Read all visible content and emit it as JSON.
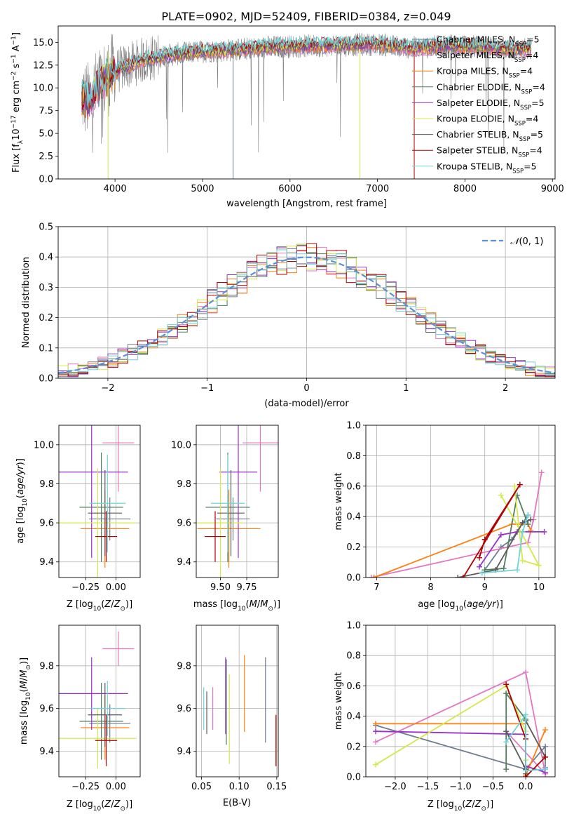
{
  "figure_title": "PLATE=0902, MJD=52409, FIBERID=0384, z=0.049",
  "colors": {
    "Chabrier MILES": "#6f7d91",
    "Salpeter MILES": "#e377c2",
    "Kroupa MILES": "#ff7f0e",
    "Chabrier ELODIE": "#4f7f5f",
    "Salpeter ELODIE": "#9932cc",
    "Kroupa ELODIE": "#d4e84a",
    "Chabrier STELIB": "#5a5a5a",
    "Salpeter STELIB": "#b30000",
    "Kroupa STELIB": "#6fd3da",
    "data": "#808080",
    "normal": "#5b8fd6"
  },
  "chart_data": [
    {
      "id": "spectrum",
      "type": "line",
      "xlabel": "wavelength [Angstrom, rest frame]",
      "ylabel": "Flux [f",
      "xlim": [
        3350,
        9030
      ],
      "ylim": [
        0,
        16.8
      ],
      "xticks": [
        4000,
        5000,
        6000,
        7000,
        8000,
        9000
      ],
      "yticks": [
        0.0,
        2.5,
        5.0,
        7.5,
        10.0,
        12.5,
        15.0
      ],
      "legend": [
        "Chabrier MILES, N_SSP=5",
        "Salpeter MILES, N_SSP=4",
        "Kroupa MILES, N_SSP=4",
        "Chabrier ELODIE, N_SSP=4",
        "Salpeter ELODIE, N_SSP=5",
        "Kroupa ELODIE, N_SSP=4",
        "Chabrier STELIB, N_SSP=5",
        "Salpeter STELIB, N_SSP=4",
        "Kroupa STELIB, N_SSP=5"
      ],
      "legend_labels": [
        {
          "name": "Chabrier MILES, N",
          "sub": "SSP",
          "tail": "=5",
          "color": "Chabrier MILES"
        },
        {
          "name": "Salpeter MILES, N",
          "sub": "SSP",
          "tail": "=4",
          "color": "Salpeter MILES"
        },
        {
          "name": "Kroupa MILES, N",
          "sub": "SSP",
          "tail": "=4",
          "color": "Kroupa MILES"
        },
        {
          "name": "Chabrier ELODIE, N",
          "sub": "SSP",
          "tail": "=4",
          "color": "Chabrier ELODIE"
        },
        {
          "name": "Salpeter ELODIE, N",
          "sub": "SSP",
          "tail": "=5",
          "color": "Salpeter ELODIE"
        },
        {
          "name": "Kroupa ELODIE, N",
          "sub": "SSP",
          "tail": "=4",
          "color": "Kroupa ELODIE"
        },
        {
          "name": "Chabrier STELIB, N",
          "sub": "SSP",
          "tail": "=5",
          "color": "Chabrier STELIB"
        },
        {
          "name": "Salpeter STELIB, N",
          "sub": "SSP",
          "tail": "=4",
          "color": "Salpeter STELIB"
        },
        {
          "name": "Kroupa STELIB, N",
          "sub": "SSP",
          "tail": "=5",
          "color": "Kroupa STELIB"
        }
      ],
      "continuum": [
        [
          3620,
          9.0
        ],
        [
          3700,
          8.5
        ],
        [
          3800,
          10.0
        ],
        [
          3950,
          11.5
        ],
        [
          4100,
          12.2
        ],
        [
          4300,
          13.0
        ],
        [
          4600,
          13.6
        ],
        [
          5000,
          14.0
        ],
        [
          5400,
          14.2
        ],
        [
          5800,
          14.5
        ],
        [
          6200,
          14.6
        ],
        [
          6600,
          14.7
        ],
        [
          7000,
          14.8
        ],
        [
          7400,
          14.4
        ],
        [
          7800,
          14.6
        ],
        [
          8200,
          14.5
        ],
        [
          8600,
          14.2
        ],
        [
          8750,
          14.2
        ]
      ]
    },
    {
      "id": "residuals",
      "type": "histogram",
      "xlabel": "(data-model)/error",
      "ylabel": "Normed distribution",
      "xlim": [
        -2.5,
        2.5
      ],
      "ylim": [
        0,
        0.5
      ],
      "xticks": [
        -2,
        -1,
        0,
        1,
        2
      ],
      "yticks": [
        0.0,
        0.1,
        0.2,
        0.3,
        0.4,
        0.5
      ],
      "bin_width": 0.1,
      "legend": "N(0,1)"
    },
    {
      "id": "age-vs-z",
      "type": "errorbar",
      "xlabel": "Z [log10(Z/Z_sun)]",
      "ylabel": "age [log10(age/yr)]",
      "xlim": [
        -0.47,
        0.2
      ],
      "ylim": [
        9.32,
        10.1
      ],
      "xticks": [
        -0.25,
        0.0
      ],
      "yticks": [
        9.4,
        9.6,
        9.8,
        10.0
      ],
      "points": [
        {
          "model": "Chabrier MILES",
          "x": -0.05,
          "xerr": 0.17,
          "y": 9.62,
          "yerr": 0.11
        },
        {
          "model": "Salpeter MILES",
          "x": 0.02,
          "xerr": 0.13,
          "y": 10.01,
          "yerr": 0.25
        },
        {
          "model": "Kroupa MILES",
          "x": -0.09,
          "xerr": 0.2,
          "y": 9.57,
          "yerr": 0.2
        },
        {
          "model": "Chabrier ELODIE",
          "x": -0.12,
          "xerr": 0.18,
          "y": 9.68,
          "yerr": 0.28
        },
        {
          "model": "Salpeter ELODIE",
          "x": -0.2,
          "xerr": 0.3,
          "y": 9.86,
          "yerr": 0.44
        },
        {
          "model": "Kroupa ELODIE",
          "x": -0.15,
          "xerr": 0.32,
          "y": 9.6,
          "yerr": 0.28
        },
        {
          "model": "Chabrier STELIB",
          "x": -0.09,
          "xerr": 0.14,
          "y": 9.65,
          "yerr": 0.22
        },
        {
          "model": "Salpeter STELIB",
          "x": -0.08,
          "xerr": 0.09,
          "y": 9.53,
          "yerr": 0.13
        },
        {
          "model": "Kroupa STELIB",
          "x": -0.07,
          "xerr": 0.15,
          "y": 9.7,
          "yerr": 0.25
        }
      ]
    },
    {
      "id": "age-vs-mass",
      "type": "errorbar",
      "xlabel": "mass [log10(M/M_sun)]",
      "ylabel": "",
      "xlim": [
        9.27,
        10.05
      ],
      "ylim": [
        9.32,
        10.1
      ],
      "xticks": [
        9.5,
        9.75
      ],
      "yticks": [
        9.4,
        9.6,
        9.8,
        10.0
      ],
      "points": [
        {
          "model": "Chabrier MILES",
          "x": 9.62,
          "xerr": 0.16,
          "y": 9.62,
          "yerr": 0.11
        },
        {
          "model": "Salpeter MILES",
          "x": 9.88,
          "xerr": 0.17,
          "y": 10.01,
          "yerr": 0.25
        },
        {
          "model": "Kroupa MILES",
          "x": 9.58,
          "xerr": 0.3,
          "y": 9.57,
          "yerr": 0.2
        },
        {
          "model": "Chabrier ELODIE",
          "x": 9.57,
          "xerr": 0.21,
          "y": 9.68,
          "yerr": 0.28
        },
        {
          "model": "Salpeter ELODIE",
          "x": 9.67,
          "xerr": 0.18,
          "y": 9.86,
          "yerr": 0.44
        },
        {
          "model": "Kroupa ELODIE",
          "x": 9.5,
          "xerr": 0.22,
          "y": 9.6,
          "yerr": 0.28
        },
        {
          "model": "Chabrier STELIB",
          "x": 9.6,
          "xerr": 0.13,
          "y": 9.65,
          "yerr": 0.22
        },
        {
          "model": "Salpeter STELIB",
          "x": 9.45,
          "xerr": 0.1,
          "y": 9.53,
          "yerr": 0.13
        },
        {
          "model": "Kroupa STELIB",
          "x": 9.57,
          "xerr": 0.16,
          "y": 9.7,
          "yerr": 0.25
        }
      ]
    },
    {
      "id": "weight-vs-age",
      "type": "line",
      "xlabel": "age [log10(age/yr)]",
      "ylabel": "mass weight",
      "xlim": [
        6.8,
        10.3
      ],
      "ylim": [
        0,
        1
      ],
      "xticks": [
        7,
        8,
        9,
        10
      ],
      "yticks": [
        0.0,
        0.2,
        0.4,
        0.6,
        0.8,
        1.0
      ],
      "series": [
        {
          "model": "Chabrier MILES",
          "x": [
            9.0,
            9.3,
            9.5,
            9.8
          ],
          "y": [
            0.05,
            0.2,
            0.25,
            0.41
          ]
        },
        {
          "model": "Salpeter MILES",
          "x": [
            6.9,
            9.8,
            9.9,
            10.05
          ],
          "y": [
            0.0,
            0.23,
            0.38,
            0.69
          ]
        },
        {
          "model": "Kroupa MILES",
          "x": [
            6.95,
            9.5,
            9.8,
            9.85
          ],
          "y": [
            0.0,
            0.35,
            0.35,
            0.31
          ]
        },
        {
          "model": "Chabrier ELODIE",
          "x": [
            9.0,
            9.35,
            9.6,
            9.8
          ],
          "y": [
            0.05,
            0.06,
            0.54,
            0.35
          ]
        },
        {
          "model": "Salpeter ELODIE",
          "x": [
            8.9,
            9.3,
            9.6,
            10.1
          ],
          "y": [
            0.07,
            0.28,
            0.3,
            0.3
          ]
        },
        {
          "model": "Kroupa ELODIE",
          "x": [
            9.55,
            9.7,
            10.0,
            9.3
          ],
          "y": [
            0.6,
            0.11,
            0.08,
            0.54
          ]
        },
        {
          "model": "Chabrier STELIB",
          "x": [
            8.5,
            9.2,
            9.7,
            9.85
          ],
          "y": [
            0.0,
            0.05,
            0.36,
            0.38
          ]
        },
        {
          "model": "Salpeter STELIB",
          "x": [
            8.9,
            9.0,
            9.65,
            8.6
          ],
          "y": [
            0.13,
            0.25,
            0.61,
            0.0
          ]
        },
        {
          "model": "Kroupa STELIB",
          "x": [
            8.95,
            9.6,
            9.7,
            9.8
          ],
          "y": [
            0.03,
            0.05,
            0.3,
            0.41
          ]
        }
      ]
    },
    {
      "id": "mass-vs-z",
      "type": "errorbar",
      "xlabel": "Z [log10(Z/Z_sun)]",
      "ylabel": "mass [log10(M/M_sun)]",
      "xlim": [
        -0.47,
        0.2
      ],
      "ylim": [
        9.28,
        9.99
      ],
      "xticks": [
        -0.25,
        0.0
      ],
      "yticks": [
        9.4,
        9.6,
        9.8
      ],
      "points": [
        {
          "model": "Chabrier MILES",
          "x": -0.05,
          "xerr": 0.17,
          "y": 9.53,
          "yerr": 0.09
        },
        {
          "model": "Salpeter MILES",
          "x": 0.02,
          "xerr": 0.13,
          "y": 9.88,
          "yerr": 0.08
        },
        {
          "model": "Kroupa MILES",
          "x": -0.09,
          "xerr": 0.2,
          "y": 9.51,
          "yerr": 0.15
        },
        {
          "model": "Chabrier ELODIE",
          "x": -0.12,
          "xerr": 0.18,
          "y": 9.54,
          "yerr": 0.18
        },
        {
          "model": "Salpeter ELODIE",
          "x": -0.2,
          "xerr": 0.3,
          "y": 9.67,
          "yerr": 0.17
        },
        {
          "model": "Kroupa ELODIE",
          "x": -0.15,
          "xerr": 0.32,
          "y": 9.46,
          "yerr": 0.14
        },
        {
          "model": "Chabrier STELIB",
          "x": -0.09,
          "xerr": 0.14,
          "y": 9.57,
          "yerr": 0.15
        },
        {
          "model": "Salpeter STELIB",
          "x": -0.08,
          "xerr": 0.09,
          "y": 9.45,
          "yerr": 0.12
        },
        {
          "model": "Kroupa STELIB",
          "x": -0.07,
          "xerr": 0.15,
          "y": 9.6,
          "yerr": 0.13
        }
      ]
    },
    {
      "id": "mass-vs-ebv",
      "type": "errorbar",
      "xlabel": "E(B-V)",
      "ylabel": "",
      "xlim": [
        0.043,
        0.152
      ],
      "ylim": [
        9.28,
        9.99
      ],
      "xticks": [
        0.05,
        0.1,
        0.15
      ],
      "yticks": [
        9.4,
        9.6,
        9.8
      ],
      "points": [
        {
          "model": "Chabrier MILES",
          "x": 0.135,
          "y": 9.64,
          "yerr": 0.2
        },
        {
          "model": "Salpeter MILES",
          "x": 0.065,
          "y": 9.6,
          "yerr": 0.1
        },
        {
          "model": "Kroupa MILES",
          "x": 0.107,
          "y": 9.67,
          "yerr": 0.18
        },
        {
          "model": "Chabrier ELODIE",
          "x": 0.083,
          "y": 9.63,
          "yerr": 0.2
        },
        {
          "model": "Salpeter ELODIE",
          "x": 0.082,
          "y": 9.66,
          "yerr": 0.18
        },
        {
          "model": "Kroupa ELODIE",
          "x": 0.087,
          "y": 9.55,
          "yerr": 0.21
        },
        {
          "model": "Chabrier STELIB",
          "x": 0.057,
          "y": 9.58,
          "yerr": 0.1
        },
        {
          "model": "Salpeter STELIB",
          "x": 0.149,
          "y": 9.45,
          "yerr": 0.12
        },
        {
          "model": "Kroupa STELIB",
          "x": 0.053,
          "y": 9.6,
          "yerr": 0.1
        }
      ]
    },
    {
      "id": "weight-vs-z",
      "type": "line",
      "xlabel": "Z [log10(Z/Z_sun)]",
      "ylabel": "mass weight",
      "xlim": [
        -2.45,
        0.45
      ],
      "ylim": [
        0,
        1
      ],
      "xticks": [
        -2.0,
        -1.5,
        -1.0,
        -0.5,
        0.0
      ],
      "yticks": [
        0.0,
        0.2,
        0.4,
        0.6,
        0.8,
        1.0
      ],
      "series": [
        {
          "model": "Chabrier MILES",
          "x": [
            -2.3,
            0.0,
            0.3,
            0.3
          ],
          "y": [
            0.34,
            0.05,
            0.2,
            0.06
          ]
        },
        {
          "model": "Salpeter MILES",
          "x": [
            -2.3,
            0.0,
            0.3,
            -0.3
          ],
          "y": [
            0.23,
            0.69,
            0.02,
            0.3
          ]
        },
        {
          "model": "Kroupa MILES",
          "x": [
            -2.3,
            0.0,
            0.0,
            0.3
          ],
          "y": [
            0.35,
            0.35,
            0.01,
            0.31
          ]
        },
        {
          "model": "Chabrier ELODIE",
          "x": [
            -0.3,
            -0.3,
            0.0,
            0.0
          ],
          "y": [
            0.05,
            0.55,
            0.38,
            0.02
          ]
        },
        {
          "model": "Salpeter ELODIE",
          "x": [
            -2.3,
            0.0,
            0.0,
            0.3
          ],
          "y": [
            0.3,
            0.28,
            0.07,
            0.03
          ]
        },
        {
          "model": "Kroupa ELODIE",
          "x": [
            -2.3,
            -0.3,
            0.0,
            0.0
          ],
          "y": [
            0.08,
            0.6,
            0.3,
            0.11
          ]
        },
        {
          "model": "Chabrier STELIB",
          "x": [
            -0.3,
            0.0,
            0.0,
            0.3
          ],
          "y": [
            0.3,
            0.05,
            0.37,
            0.13
          ]
        },
        {
          "model": "Salpeter STELIB",
          "x": [
            -0.3,
            0.0,
            0.0,
            0.3
          ],
          "y": [
            0.61,
            0.25,
            0.0,
            0.13
          ]
        },
        {
          "model": "Kroupa STELIB",
          "x": [
            -0.3,
            0.0,
            0.0,
            0.3
          ],
          "y": [
            0.23,
            0.41,
            0.04,
            0.05
          ]
        }
      ]
    }
  ]
}
